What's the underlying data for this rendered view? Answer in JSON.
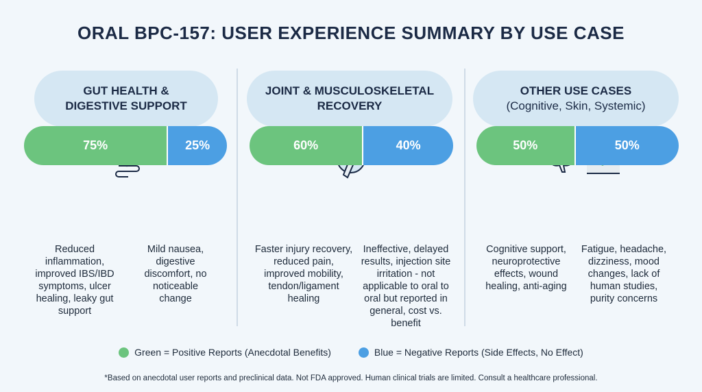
{
  "title": "ORAL BPC-157: USER EXPERIENCE SUMMARY BY USE CASE",
  "columns": [
    {
      "heading": "GUT HEALTH & DIGESTIVE SUPPORT",
      "heading_line1": "GUT HEALTH &",
      "heading_line2": "DIGESTIVE SUPPORT",
      "icon": "stomach-icon",
      "positive_pct": 75,
      "negative_pct": 25,
      "positive_label": "75%",
      "negative_label": "25%",
      "positive_text": "Reduced inflammation, improved IBS/IBD symptoms, ulcer healing, leaky gut support",
      "negative_text": "Mild nausea, digestive discomfort, no noticeable change"
    },
    {
      "heading_line1": "JOINT & MUSCULOSKELETAL",
      "heading_line2": "RECOVERY",
      "icon": "joint-icon",
      "positive_pct": 60,
      "negative_pct": 40,
      "positive_label": "60%",
      "negative_label": "40%",
      "positive_text": "Faster injury recovery, reduced pain, improved mobility, tendon/ligament healing",
      "negative_text": "Ineffective, delayed results, injection site irritation - not applicable to oral to oral but reported in general, cost vs. benefit"
    },
    {
      "heading_line1": "OTHER USE CASES",
      "heading_line2": "(Cognitive, Skin, Systemic)",
      "icon": "brain-and-skin-icon",
      "positive_pct": 50,
      "negative_pct": 50,
      "positive_label": "50%",
      "negative_label": "50%",
      "positive_text": "Cognitive support, neuroprotective effects, wound healing, anti-aging",
      "negative_text": "Fatigue, headache, dizziness, mood changes, lack of human studies, purity concerns"
    }
  ],
  "legend": {
    "green": "Green = Positive Reports (Anecdotal Benefits)",
    "blue": "Blue = Negative Reports (Side Effects, No Effect)"
  },
  "footnote": "*Based on anecdotal user reports and preclinical data. Not FDA approved. Human clinical trials are limited. Consult a healthcare professional.",
  "colors": {
    "positive": "#6cc47e",
    "negative": "#4c9fe3",
    "pill": "#d5e7f3",
    "title": "#1b2a45"
  }
}
